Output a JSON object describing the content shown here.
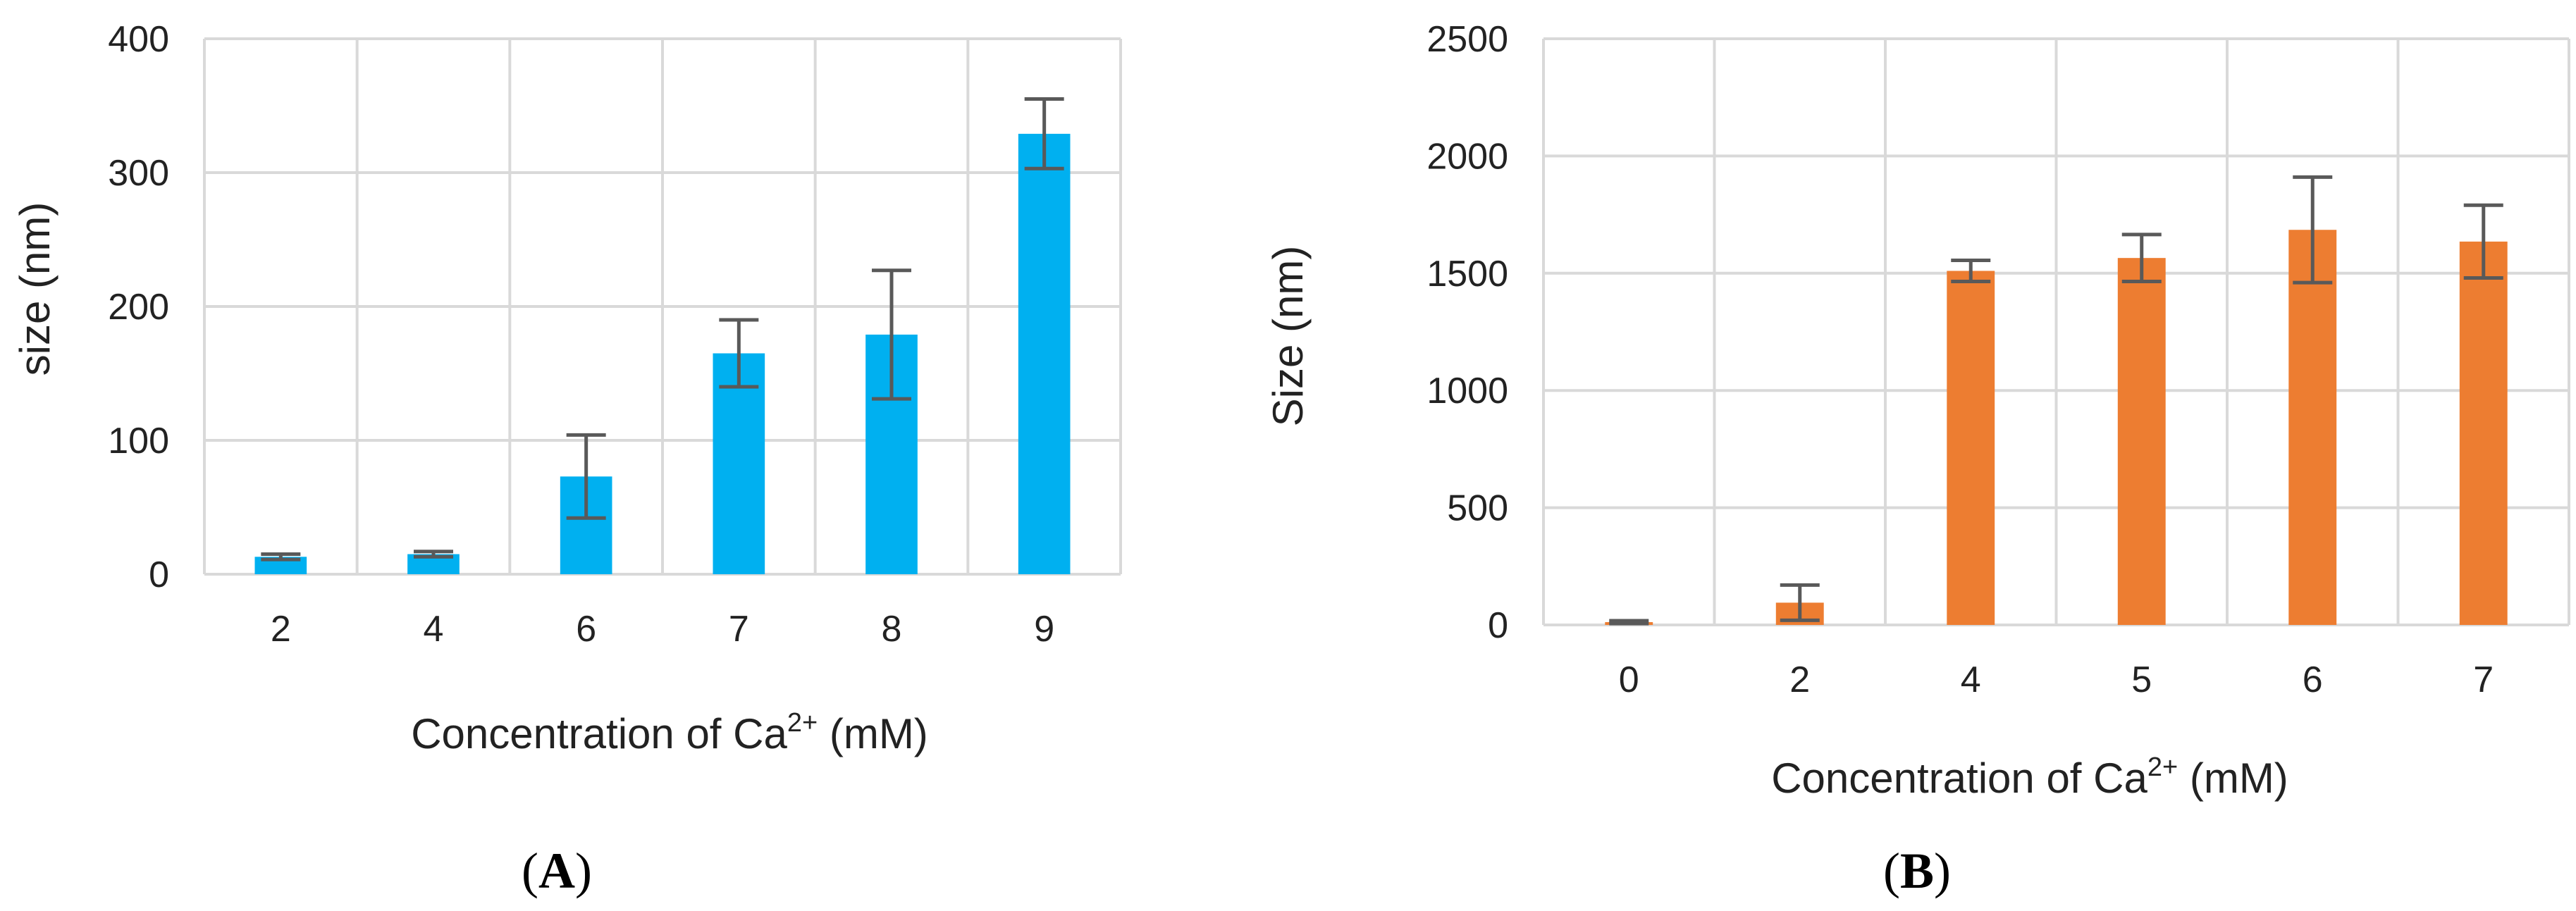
{
  "chart_data": [
    {
      "type": "bar",
      "panel_label": "A",
      "categories": [
        "2",
        "4",
        "6",
        "7",
        "8",
        "9"
      ],
      "values": [
        13,
        15,
        73,
        165,
        179,
        329
      ],
      "errors": [
        2,
        2,
        31,
        25,
        48,
        26
      ],
      "ylim": [
        0,
        400
      ],
      "yticks": [
        0,
        100,
        200,
        300,
        400
      ],
      "ylabel": "size (nm)",
      "xlabel": {
        "main": "Concentration of Ca",
        "sup": "2+",
        "suffix": " (mM)"
      },
      "grid": true,
      "bar_color": "#00B0F0"
    },
    {
      "type": "bar",
      "panel_label": "B",
      "categories": [
        "0",
        "2",
        "4",
        "5",
        "6",
        "7"
      ],
      "values": [
        12,
        95,
        1510,
        1565,
        1685,
        1635
      ],
      "errors": [
        6,
        75,
        45,
        100,
        225,
        155
      ],
      "ylim": [
        0,
        2500
      ],
      "yticks": [
        0,
        500,
        1000,
        1500,
        2000,
        2500
      ],
      "ylabel": "Size (nm)",
      "xlabel": {
        "main": "Concentration of Ca",
        "sup": "2+",
        "suffix": " (mM)"
      },
      "grid": true,
      "bar_color": "#ED7D31"
    }
  ]
}
